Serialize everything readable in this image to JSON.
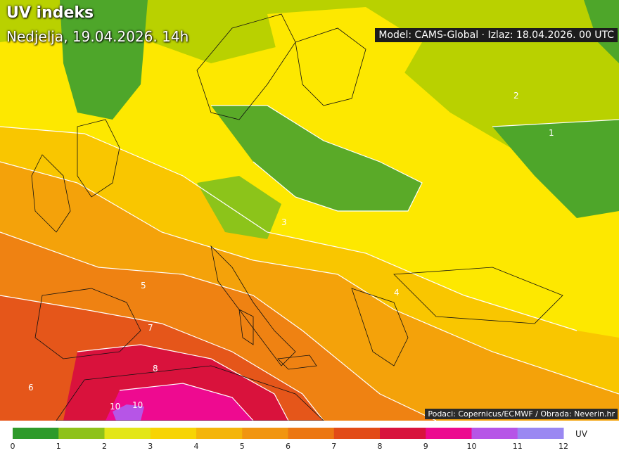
{
  "title": "UV indeks",
  "subtitle": "Nedjelja, 19.04.2026. 14h",
  "model_info": "Model: CAMS-Global · Izlaz: 18.04.2026. 00 UTC",
  "source": "Podaci: Copernicus/ECMWF / Obrada: Neverin.hr",
  "legend": {
    "unit": "UV",
    "ticks": [
      "0",
      "1",
      "2",
      "3",
      "4",
      "5",
      "6",
      "7",
      "8",
      "9",
      "10",
      "11",
      "12"
    ],
    "colors": [
      "#2e9a2a",
      "#8ec21a",
      "#e3e617",
      "#f7d404",
      "#f4b50a",
      "#f19510",
      "#ec7712",
      "#e24b17",
      "#d8133d",
      "#ec0a8f",
      "#b655e7",
      "#9a88f2"
    ]
  },
  "contour_labels": [
    "1",
    "2",
    "3",
    "4",
    "5",
    "6",
    "7",
    "8",
    "10",
    "10"
  ],
  "palette": {
    "sea_orange": "#ef8b15",
    "yellow": "#fde800",
    "green_dark": "#3d9e26"
  }
}
